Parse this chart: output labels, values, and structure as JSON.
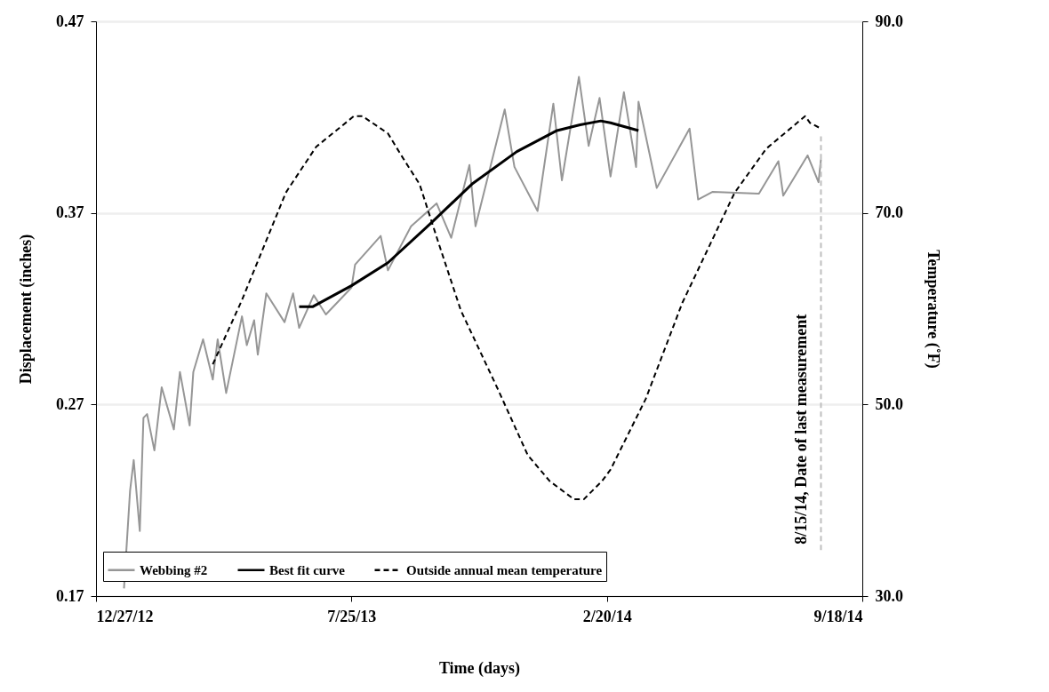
{
  "chart_data": {
    "type": "line",
    "xlabel": "Time (days)",
    "ylabel": "Displacement (inches)",
    "y2label": "Temperature (˚F)",
    "xlim": [
      "2012-12-27",
      "2014-09-18"
    ],
    "xticks": [
      {
        "value": "2012-12-27",
        "label": "12/27/12"
      },
      {
        "value": "2013-07-25",
        "label": "7/25/13"
      },
      {
        "value": "2014-02-20",
        "label": "2/20/14"
      },
      {
        "value": "2014-09-18",
        "label": "9/18/14"
      }
    ],
    "ylim": [
      0.17,
      0.47
    ],
    "yticks": [
      0.17,
      0.27,
      0.37,
      0.47
    ],
    "y2lim": [
      30,
      90
    ],
    "y2ticks": [
      {
        "value": 30,
        "label": "30.0"
      },
      {
        "value": 50,
        "label": "50.0"
      },
      {
        "value": 70,
        "label": "70.0"
      },
      {
        "value": 90,
        "label": "90.0"
      }
    ],
    "grid": "y",
    "legend": "bottom",
    "series": [
      {
        "name": "Webbing #2",
        "color": "#969696",
        "line_style": "solid",
        "x": [
          "2013-01-19",
          "2013-01-24",
          "2013-01-27",
          "2013-02-01",
          "2013-02-04",
          "2013-02-07",
          "2013-02-13",
          "2013-02-19",
          "2013-03-01",
          "2013-03-06",
          "2013-03-14",
          "2013-03-17",
          "2013-03-25",
          "2013-04-02",
          "2013-04-06",
          "2013-04-13",
          "2013-04-26",
          "2013-04-30",
          "2013-05-06",
          "2013-05-09",
          "2013-05-16",
          "2013-05-31",
          "2013-06-07",
          "2013-06-12",
          "2013-06-24",
          "2013-07-04",
          "2013-07-25",
          "2013-07-28",
          "2013-08-18",
          "2013-08-24",
          "2013-09-12",
          "2013-10-03",
          "2013-10-15",
          "2013-10-30",
          "2013-11-04",
          "2013-11-28",
          "2013-12-06",
          "2013-12-25",
          "2014-01-07",
          "2014-01-14",
          "2014-01-28",
          "2014-02-05",
          "2014-02-14",
          "2014-02-23",
          "2014-03-06",
          "2014-03-16",
          "2014-03-18",
          "2014-04-02",
          "2014-04-29",
          "2014-05-06",
          "2014-05-18",
          "2014-06-25",
          "2014-07-11",
          "2014-07-15",
          "2014-08-04",
          "2014-08-13",
          "2014-08-15"
        ],
        "values": [
          0.174,
          0.225,
          0.241,
          0.204,
          0.263,
          0.265,
          0.246,
          0.279,
          0.257,
          0.287,
          0.259,
          0.287,
          0.304,
          0.283,
          0.304,
          0.276,
          0.316,
          0.301,
          0.314,
          0.296,
          0.328,
          0.313,
          0.328,
          0.31,
          0.327,
          0.317,
          0.331,
          0.343,
          0.358,
          0.34,
          0.363,
          0.375,
          0.357,
          0.395,
          0.363,
          0.424,
          0.394,
          0.371,
          0.427,
          0.387,
          0.441,
          0.405,
          0.43,
          0.389,
          0.433,
          0.394,
          0.428,
          0.383,
          0.414,
          0.377,
          0.381,
          0.38,
          0.397,
          0.379,
          0.4,
          0.386,
          0.398
        ]
      },
      {
        "name": "Best fit curve",
        "color": "#000000",
        "line_style": "solid",
        "x": [
          "2013-06-12",
          "2013-06-23",
          "2013-07-25",
          "2013-08-24",
          "2013-09-29",
          "2013-11-01",
          "2013-12-08",
          "2014-01-10",
          "2014-01-29",
          "2014-02-15",
          "2014-02-23",
          "2014-03-18"
        ],
        "values": [
          0.321,
          0.321,
          0.332,
          0.344,
          0.365,
          0.385,
          0.402,
          0.413,
          0.416,
          0.418,
          0.417,
          0.413
        ]
      },
      {
        "name": "Outside annual mean temperature",
        "color": "#000000",
        "line_style": "dashed",
        "axis": "y2",
        "x": [
          "2013-04-02",
          "2013-04-26",
          "2013-06-01",
          "2013-06-03",
          "2013-06-26",
          "2013-07-27",
          "2013-08-03",
          "2013-08-24",
          "2013-09-04",
          "2013-09-19",
          "2013-10-04",
          "2013-10-23",
          "2013-11-22",
          "2013-12-17",
          "2014-01-04",
          "2014-01-24",
          "2014-02-01",
          "2014-02-16",
          "2014-02-23",
          "2014-03-24",
          "2014-04-23",
          "2014-06-05",
          "2014-07-01",
          "2014-08-02",
          "2014-08-06",
          "2014-08-15"
        ],
        "values": [
          54.2,
          60.9,
          72.1,
          72.5,
          76.9,
          80.1,
          80.1,
          78.3,
          76.0,
          73.0,
          67.1,
          59.8,
          51.7,
          44.7,
          42.0,
          40.1,
          40.1,
          42.0,
          43.2,
          50.6,
          60.6,
          72.1,
          76.7,
          80.1,
          79.4,
          78.8
        ]
      }
    ],
    "ref_lines": [
      {
        "axis": "x",
        "value": "2014-08-15",
        "label": "8/15/14, Date of last measurement",
        "color": "#bfbfbf",
        "line_style": "dashed"
      }
    ]
  }
}
